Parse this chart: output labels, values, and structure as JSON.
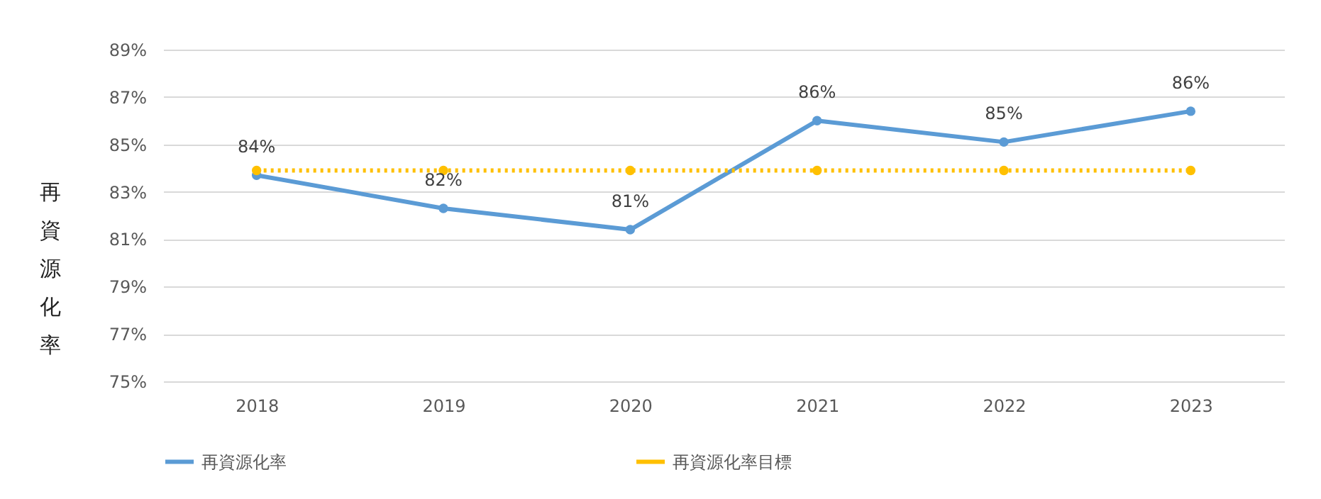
{
  "chart_data": {
    "type": "line",
    "ylabel": "再資源化率",
    "categories": [
      "2018",
      "2019",
      "2020",
      "2021",
      "2022",
      "2023"
    ],
    "series": [
      {
        "name": "再資源化率",
        "color": "#5b9bd5",
        "line_style": "solid",
        "values": [
          83.7,
          82.3,
          81.4,
          86.0,
          85.1,
          86.4
        ],
        "value_labels": [
          "84%",
          "82%",
          "81%",
          "86%",
          "85%",
          "86%"
        ]
      },
      {
        "name": "再資源化率目標",
        "color": "#ffc000",
        "line_style": "dotted",
        "values": [
          83.9,
          83.9,
          83.9,
          83.9,
          83.9,
          83.9
        ]
      }
    ],
    "ylim": [
      75,
      89
    ],
    "yticks": [
      {
        "value": 75,
        "label": "75%"
      },
      {
        "value": 77,
        "label": "77%"
      },
      {
        "value": 79,
        "label": "79%"
      },
      {
        "value": 81,
        "label": "81%"
      },
      {
        "value": 83,
        "label": "83%"
      },
      {
        "value": 85,
        "label": "85%"
      },
      {
        "value": 87,
        "label": "87%"
      },
      {
        "value": 89,
        "label": "89%"
      }
    ],
    "grid": "y",
    "legend": "bottom",
    "marker": "circle"
  }
}
